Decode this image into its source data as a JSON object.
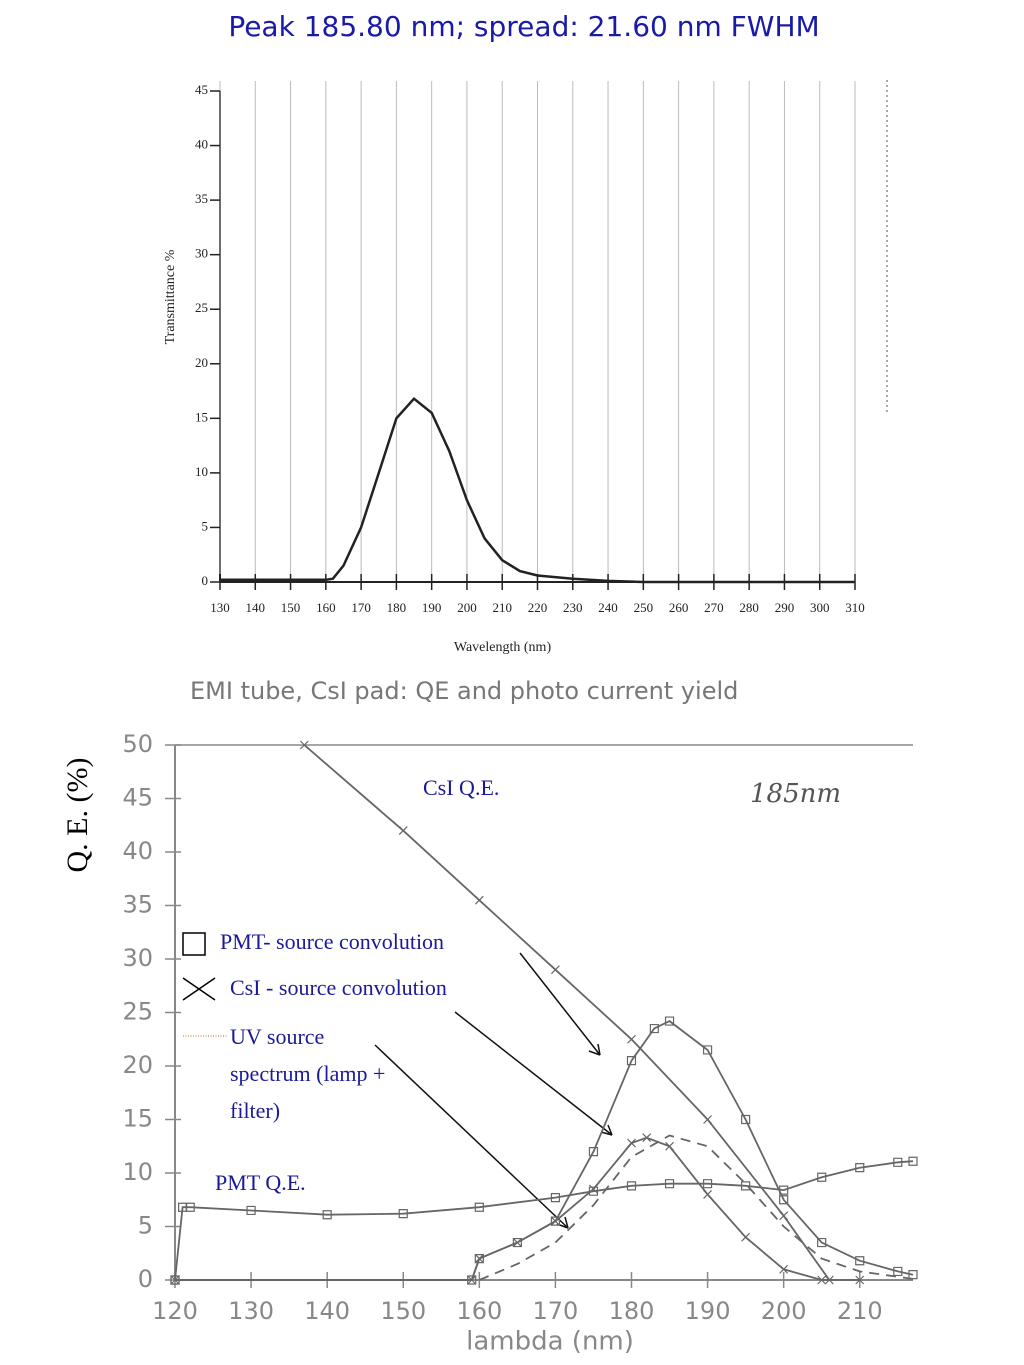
{
  "title": "Peak 185.80 nm; spread: 21.60 nm  FWHM",
  "chart_data": [
    {
      "type": "line",
      "x_label": "Wavelength (nm)",
      "y_label": "Transmittance %",
      "x": [
        130,
        140,
        150,
        160,
        162,
        165,
        170,
        175,
        180,
        185,
        190,
        195,
        200,
        205,
        210,
        215,
        220,
        230,
        240,
        250,
        260,
        270,
        280,
        290,
        300,
        310
      ],
      "values": [
        0.2,
        0.2,
        0.2,
        0.2,
        0.3,
        1.5,
        5,
        10,
        15,
        16.8,
        15.5,
        12,
        7.5,
        4,
        2,
        1,
        0.6,
        0.3,
        0.1,
        0,
        0,
        0,
        0,
        0,
        0,
        0
      ],
      "color": "#222222",
      "xlim": [
        130,
        310
      ],
      "xticks": [
        130,
        140,
        150,
        160,
        170,
        180,
        190,
        200,
        210,
        220,
        230,
        240,
        250,
        260,
        270,
        280,
        290,
        300,
        310
      ],
      "ylim": [
        0,
        45
      ],
      "yticks": [
        0,
        5,
        10,
        15,
        20,
        25,
        30,
        35,
        40,
        45
      ],
      "grid": true
    },
    {
      "type": "line",
      "title": "EMI tube, CsI pad: QE and photo current yield",
      "x_label": "lambda (nm)",
      "y_label": "Q. E. (%)",
      "annotations": [
        "185nm"
      ],
      "series": [
        {
          "name": "PMT Q.E.",
          "color": "#666666",
          "marker": "square",
          "x": [
            120,
            121,
            122,
            130,
            140,
            150,
            160,
            170,
            175,
            180,
            185,
            190,
            195,
            200,
            205,
            210,
            215,
            217
          ],
          "values": [
            0,
            6.8,
            6.8,
            6.5,
            6.1,
            6.2,
            6.8,
            7.7,
            8.3,
            8.8,
            9,
            9,
            8.8,
            8.4,
            9.6,
            10.5,
            11,
            11.1
          ]
        },
        {
          "name": "CsI Q.E.",
          "color": "#666666",
          "marker": "cross",
          "x": [
            137,
            150,
            160,
            170,
            180,
            190,
            200,
            206
          ],
          "values": [
            50,
            42,
            35.5,
            29,
            22.5,
            15,
            6,
            0
          ]
        },
        {
          "name": "PMT- source convolution",
          "color": "#666666",
          "marker": "square",
          "x": [
            120,
            159,
            160,
            165,
            170,
            175,
            180,
            183,
            185,
            190,
            195,
            200,
            205,
            210,
            215,
            217
          ],
          "values": [
            0,
            0,
            2,
            3.5,
            5.5,
            12,
            20.5,
            23.5,
            24.2,
            21.5,
            15,
            7.5,
            3.5,
            1.8,
            0.8,
            0.5
          ]
        },
        {
          "name": "CsI - source convolution",
          "color": "#666666",
          "marker": "cross",
          "x": [
            120,
            159,
            160,
            165,
            170,
            175,
            180,
            182,
            185,
            190,
            195,
            200,
            205,
            210
          ],
          "values": [
            0,
            0,
            2,
            3.5,
            5.5,
            8.5,
            12.8,
            13.3,
            12.5,
            8,
            4,
            1,
            0,
            0
          ]
        },
        {
          "name": "UV source spectrum (lamp + filter)",
          "color": "#666666",
          "marker": "none",
          "dash": true,
          "x": [
            160,
            165,
            170,
            175,
            180,
            185,
            190,
            195,
            200,
            205,
            210,
            215,
            217
          ],
          "values": [
            0,
            1.5,
            3.5,
            7,
            11.5,
            13.5,
            12.5,
            9,
            5,
            2,
            0.8,
            0.3,
            0.1
          ]
        }
      ],
      "xlim": [
        120,
        217
      ],
      "xticks": [
        120,
        130,
        140,
        150,
        160,
        170,
        180,
        190,
        200,
        210
      ],
      "ylim": [
        0,
        50
      ],
      "yticks": [
        0,
        5,
        10,
        15,
        20,
        25,
        30,
        35,
        40,
        45,
        50
      ],
      "grid": false
    }
  ]
}
